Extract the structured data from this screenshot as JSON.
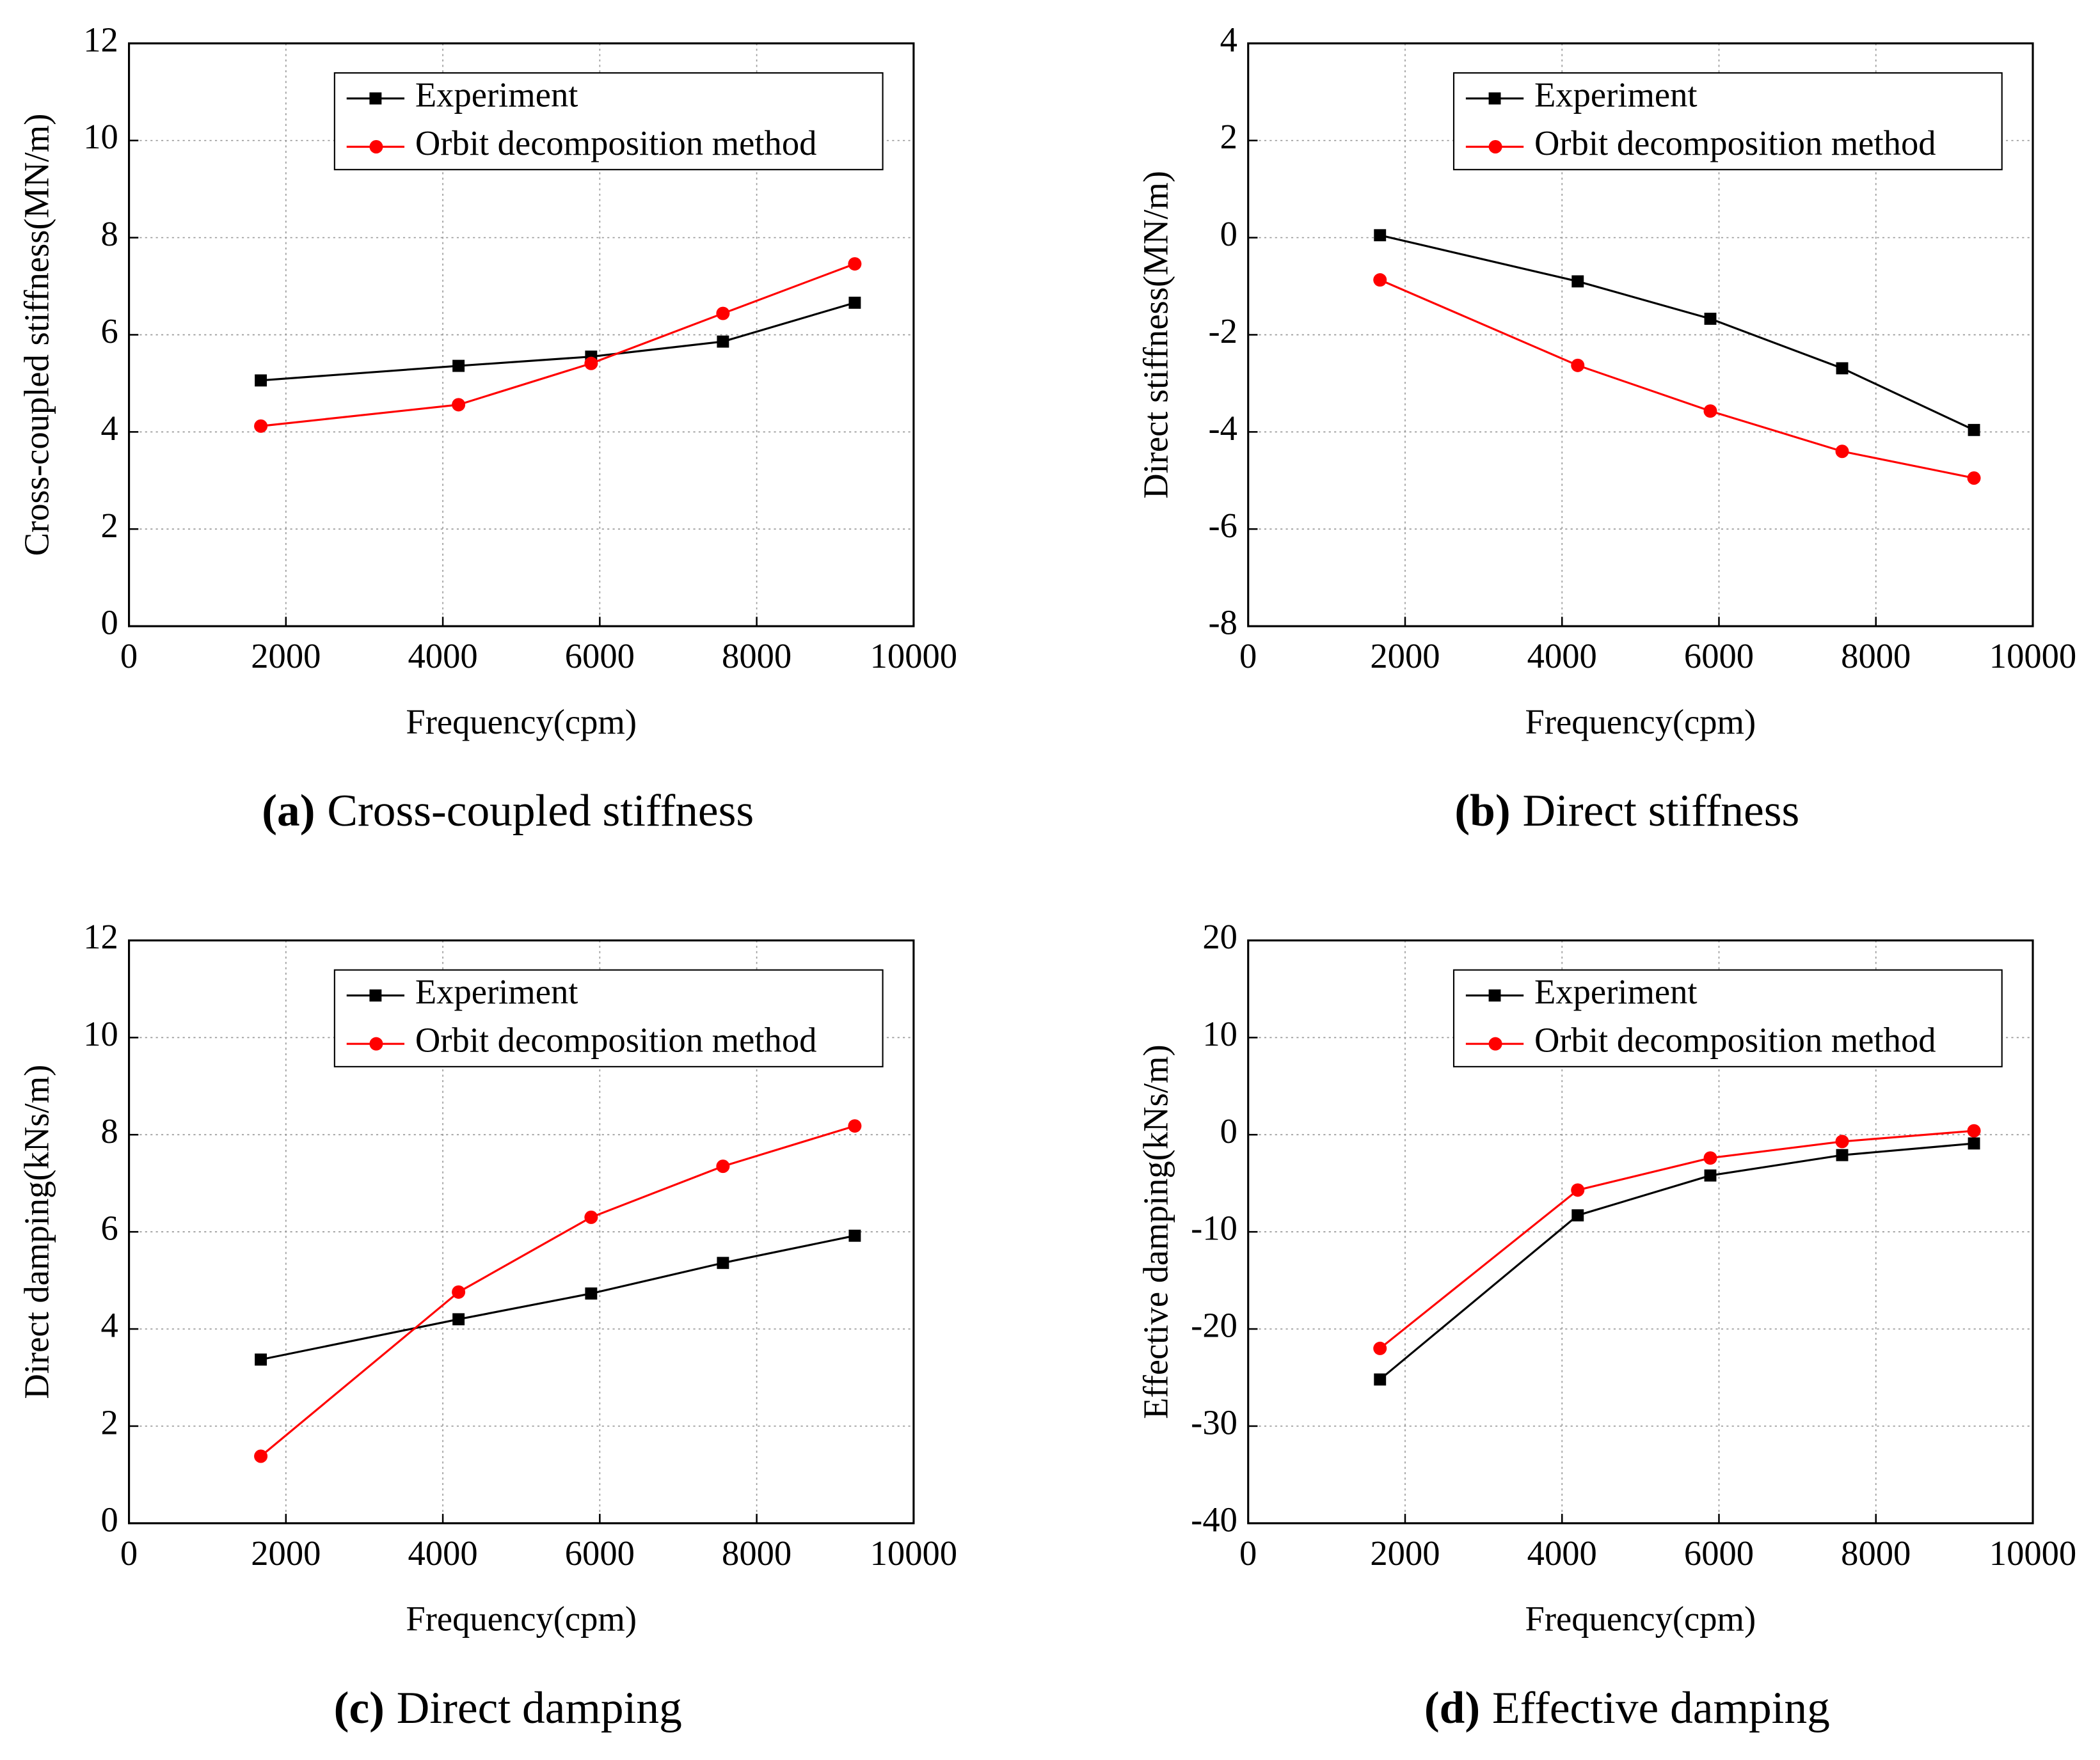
{
  "chart_data": [
    {
      "type": "line",
      "caption_label": "(a)",
      "caption": "Cross-coupled stiffness",
      "xlabel": "Frequency(cpm)",
      "ylabel": "Cross-coupled stiffness(MN/m)",
      "x": [
        1680,
        4200,
        5890,
        7570,
        9250
      ],
      "series": [
        {
          "name": "Experiment",
          "color": "#000000",
          "marker": "square",
          "values": [
            5.06,
            5.36,
            5.55,
            5.86,
            6.66
          ]
        },
        {
          "name": "Orbit decomposition method",
          "color": "#ff0000",
          "marker": "circle",
          "values": [
            4.12,
            4.56,
            5.41,
            6.44,
            7.46
          ]
        }
      ],
      "xlim": [
        0,
        10000
      ],
      "xticks": [
        0,
        2000,
        4000,
        6000,
        8000,
        10000
      ],
      "ylim": [
        0,
        12
      ],
      "yticks": [
        0,
        2,
        4,
        6,
        8,
        10,
        12
      ],
      "grid": true,
      "legend": "upper right"
    },
    {
      "type": "line",
      "caption_label": "(b)",
      "caption": "Direct stiffness",
      "xlabel": "Frequency(cpm)",
      "ylabel": "Direct stiffness(MN/m)",
      "x": [
        1680,
        4200,
        5890,
        7570,
        9250
      ],
      "series": [
        {
          "name": "Experiment",
          "color": "#000000",
          "marker": "square",
          "values": [
            0.05,
            -0.9,
            -1.67,
            -2.69,
            -3.96
          ]
        },
        {
          "name": "Orbit decomposition method",
          "color": "#ff0000",
          "marker": "circle",
          "values": [
            -0.87,
            -2.63,
            -3.57,
            -4.4,
            -4.95
          ]
        }
      ],
      "xlim": [
        0,
        10000
      ],
      "xticks": [
        0,
        2000,
        4000,
        6000,
        8000,
        10000
      ],
      "ylim": [
        -8,
        4
      ],
      "yticks": [
        -8,
        -6,
        -4,
        -2,
        0,
        2,
        4
      ],
      "grid": true,
      "legend": "upper right"
    },
    {
      "type": "line",
      "caption_label": "(c)",
      "caption": "Direct damping",
      "xlabel": "Frequency(cpm)",
      "ylabel": "Direct damping(kNs/m)",
      "x": [
        1680,
        4200,
        5890,
        7570,
        9250
      ],
      "series": [
        {
          "name": "Experiment",
          "color": "#000000",
          "marker": "square",
          "values": [
            3.37,
            4.2,
            4.73,
            5.36,
            5.92
          ]
        },
        {
          "name": "Orbit decomposition method",
          "color": "#ff0000",
          "marker": "circle",
          "values": [
            1.38,
            4.76,
            6.3,
            7.35,
            8.18
          ]
        }
      ],
      "xlim": [
        0,
        10000
      ],
      "xticks": [
        0,
        2000,
        4000,
        6000,
        8000,
        10000
      ],
      "ylim": [
        0,
        12
      ],
      "yticks": [
        0,
        2,
        4,
        6,
        8,
        10,
        12
      ],
      "grid": true,
      "legend": "upper right"
    },
    {
      "type": "line",
      "caption_label": "(d)",
      "caption": "Effective damping",
      "xlabel": "Frequency(cpm)",
      "ylabel": "Effective damping(kNs/m)",
      "x": [
        1680,
        4200,
        5890,
        7570,
        9250
      ],
      "series": [
        {
          "name": "Experiment",
          "color": "#000000",
          "marker": "square",
          "values": [
            -25.2,
            -8.3,
            -4.2,
            -2.1,
            -0.9
          ]
        },
        {
          "name": "Orbit decomposition method",
          "color": "#ff0000",
          "marker": "circle",
          "values": [
            -22.0,
            -5.7,
            -2.4,
            -0.7,
            0.4
          ]
        }
      ],
      "xlim": [
        0,
        10000
      ],
      "xticks": [
        0,
        2000,
        4000,
        6000,
        8000,
        10000
      ],
      "ylim": [
        -40,
        20
      ],
      "yticks": [
        -40,
        -30,
        -20,
        -10,
        0,
        10,
        20
      ],
      "grid": true,
      "legend": "upper right"
    }
  ]
}
